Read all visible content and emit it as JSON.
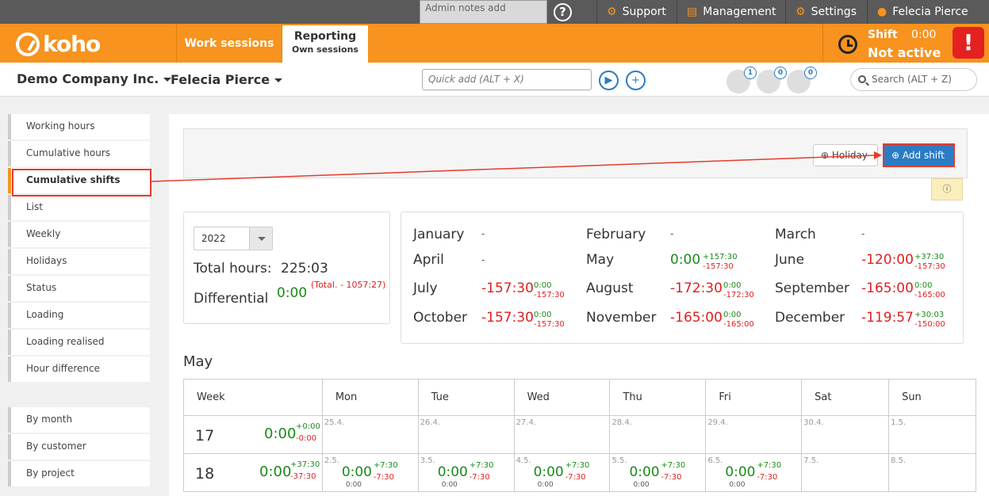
{
  "topbar": {
    "admin_notes": "Admin notes add",
    "support": "Support",
    "management": "Management",
    "settings": "Settings",
    "user": "Felecia Pierce"
  },
  "header": {
    "logo": "koho",
    "tab_work": "Work sessions",
    "tab_reporting": "Reporting",
    "tab_reporting_sub": "Own sessions",
    "shift_label": "Shift",
    "shift_time": "0:00",
    "shift_status": "Not active"
  },
  "subheader": {
    "company": "Demo Company Inc.",
    "person": "Felecia Pierce",
    "quick_add": "Quick add (ALT + X)",
    "search": "Search (ALT + Z)",
    "badges": [
      "1",
      "0",
      "0"
    ]
  },
  "sidebar": {
    "items": [
      "Working hours",
      "Cumulative hours",
      "Cumulative shifts",
      "List",
      "Weekly",
      "Holidays",
      "Status",
      "Loading",
      "Loading realised",
      "Hour difference"
    ],
    "items2": [
      "By month",
      "By customer",
      "By project"
    ],
    "active": "Cumulative shifts"
  },
  "toolbar": {
    "holiday": "Holiday",
    "add_shift": "Add shift"
  },
  "summary": {
    "year": "2022",
    "total_label": "Total hours:",
    "total_value": "225:03",
    "diff_label": "Differential",
    "diff_value": "0:00",
    "diff_total": "(Total. - 1057:27)"
  },
  "months": [
    {
      "name": "January",
      "value": "-"
    },
    {
      "name": "February",
      "value": "-"
    },
    {
      "name": "March",
      "value": "-"
    },
    {
      "name": "April",
      "value": "-"
    },
    {
      "name": "May",
      "value": "0:00",
      "plus": "+157:30",
      "minus": "-157:30"
    },
    {
      "name": "June",
      "value": "-120:00",
      "plus": "+37:30",
      "minus": "-157:30"
    },
    {
      "name": "July",
      "value": "-157:30",
      "plus": "0:00",
      "minus": "-157:30"
    },
    {
      "name": "August",
      "value": "-172:30",
      "plus": "0:00",
      "minus": "-172:30"
    },
    {
      "name": "September",
      "value": "-165:00",
      "plus": "0:00",
      "minus": "-165:00"
    },
    {
      "name": "October",
      "value": "-157:30",
      "plus": "0:00",
      "minus": "-157:30"
    },
    {
      "name": "November",
      "value": "-165:00",
      "plus": "0:00",
      "minus": "-165:00"
    },
    {
      "name": "December",
      "value": "-119:57",
      "plus": "+30:03",
      "minus": "-150:00"
    }
  ],
  "calendar": {
    "title": "May",
    "headers": [
      "Week",
      "Mon",
      "Tue",
      "Wed",
      "Thu",
      "Fri",
      "Sat",
      "Sun"
    ],
    "week17": {
      "num": "17",
      "value": "0:00",
      "plus": "+0:00",
      "minus": "-0:00",
      "dates": [
        "25.4.",
        "26.4.",
        "27.4.",
        "28.4.",
        "29.4.",
        "30.4.",
        "1.5."
      ]
    },
    "week18": {
      "num": "18",
      "value": "0:00",
      "plus": "+37:30",
      "minus": "-37:30",
      "dates": [
        "2.5.",
        "3.5.",
        "4.5.",
        "5.5.",
        "6.5.",
        "7.5.",
        "8.5."
      ],
      "day_value": "0:00",
      "day_plus": "+7:30",
      "day_minus": "-7:30",
      "day_zero": "0:00"
    }
  }
}
